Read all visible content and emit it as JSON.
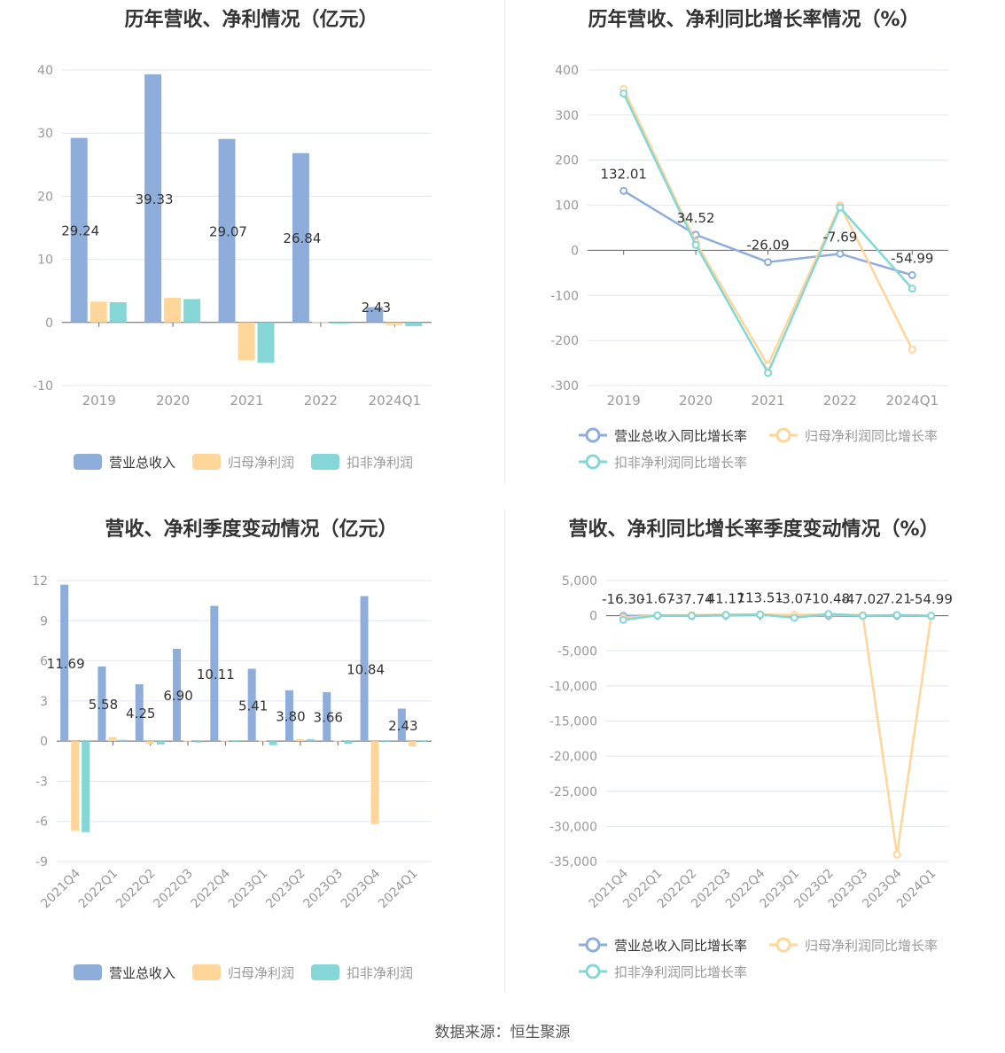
{
  "footer": "数据来源：恒生聚源",
  "colors": {
    "revenue": "#8fadda",
    "net_profit": "#ffd699",
    "deducted_profit": "#85d6d6",
    "grid": "#e0e6f0",
    "axis": "#666666",
    "label": "#999999"
  },
  "chart_data": [
    {
      "type": "bar",
      "title": "历年营收、净利情况（亿元）",
      "categories": [
        "2019",
        "2020",
        "2021",
        "2022",
        "2024Q1"
      ],
      "series": [
        {
          "name": "营业总收入",
          "values": [
            29.24,
            39.33,
            29.07,
            26.84,
            2.43
          ]
        },
        {
          "name": "归母净利润",
          "values": [
            3.3,
            3.9,
            -6.0,
            0.1,
            -0.4
          ]
        },
        {
          "name": "扣非净利润",
          "values": [
            3.2,
            3.7,
            -6.4,
            -0.2,
            -0.6
          ]
        }
      ],
      "data_labels": [
        "29.24",
        "39.33",
        "29.07",
        "26.84",
        "2.43"
      ],
      "ylim": [
        -10,
        40
      ],
      "yticks": [
        "40",
        "30",
        "20",
        "10",
        "0",
        "-10"
      ],
      "legend": "bottom"
    },
    {
      "type": "line",
      "title": "历年营收、净利同比增长率情况（%）",
      "categories": [
        "2019",
        "2020",
        "2021",
        "2022",
        "2024Q1"
      ],
      "series": [
        {
          "name": "营业总收入同比增长率",
          "values": [
            132.01,
            34.52,
            -26.09,
            -7.69,
            -54.99
          ]
        },
        {
          "name": "归母净利润同比增长率",
          "values": [
            358,
            18,
            -255,
            100,
            -220
          ]
        },
        {
          "name": "扣非净利润同比增长率",
          "values": [
            348,
            12,
            -272,
            95,
            -85
          ]
        }
      ],
      "data_labels": [
        "132.01",
        "34.52",
        "-26.09",
        "-7.69",
        "-54.99"
      ],
      "ylim": [
        -300,
        400
      ],
      "yticks": [
        "400",
        "300",
        "200",
        "100",
        "0",
        "-100",
        "-200",
        "-300"
      ],
      "legend": "bottom"
    },
    {
      "type": "bar",
      "title": "营收、净利季度变动情况（亿元）",
      "categories": [
        "2021Q4",
        "2022Q1",
        "2022Q2",
        "2022Q3",
        "2022Q4",
        "2023Q1",
        "2023Q2",
        "2023Q3",
        "2023Q4",
        "2024Q1"
      ],
      "series": [
        {
          "name": "营业总收入",
          "values": [
            11.69,
            5.58,
            4.25,
            6.9,
            10.11,
            5.41,
            3.8,
            3.66,
            10.84,
            2.43
          ]
        },
        {
          "name": "归母净利润",
          "values": [
            -6.7,
            0.3,
            -0.2,
            0.05,
            0.05,
            0.05,
            0.15,
            0.05,
            -6.2,
            -0.4
          ]
        },
        {
          "name": "扣非净利润",
          "values": [
            -6.8,
            0.1,
            -0.25,
            -0.1,
            -0.05,
            -0.3,
            0.15,
            -0.2,
            0.0,
            0.0
          ]
        }
      ],
      "data_labels": [
        "11.69",
        "5.58",
        "4.25",
        "6.90",
        "10.11",
        "5.41",
        "3.80",
        "3.66",
        "10.84",
        "2.43"
      ],
      "ylim": [
        -9,
        12
      ],
      "yticks": [
        "12",
        "9",
        "6",
        "3",
        "0",
        "-3",
        "-6",
        "-9"
      ],
      "legend": "bottom"
    },
    {
      "type": "line",
      "title": "营收、净利同比增长率季度变动情况（%）",
      "categories": [
        "2021Q4",
        "2022Q1",
        "2022Q2",
        "2022Q3",
        "2022Q4",
        "2023Q1",
        "2023Q2",
        "2023Q3",
        "2023Q4",
        "2024Q1"
      ],
      "series": [
        {
          "name": "营业总收入同比增长率",
          "values": [
            -16.3,
            -1.67,
            -37.74,
            41.17,
            113.51,
            -3.07,
            -10.48,
            -47.02,
            7.21,
            -54.99
          ]
        },
        {
          "name": "归母净利润同比增长率",
          "values": [
            -300,
            50,
            100,
            150,
            200,
            120,
            150,
            100,
            -34000,
            0
          ]
        },
        {
          "name": "扣非净利润同比增长率",
          "values": [
            -600,
            50,
            0,
            100,
            150,
            -300,
            250,
            0,
            100,
            0
          ]
        }
      ],
      "data_labels": [
        "-16.30",
        "-1.67",
        "-37.74",
        "41.17",
        "113.51",
        "-3.07",
        "-10.48",
        "-47.02",
        "7.21",
        "-54.99"
      ],
      "ylim": [
        -35000,
        5000
      ],
      "yticks": [
        "5,000",
        "0",
        "-5,000",
        "-10,000",
        "-15,000",
        "-20,000",
        "-25,000",
        "-30,000",
        "-35,000"
      ],
      "legend": "bottom"
    }
  ]
}
